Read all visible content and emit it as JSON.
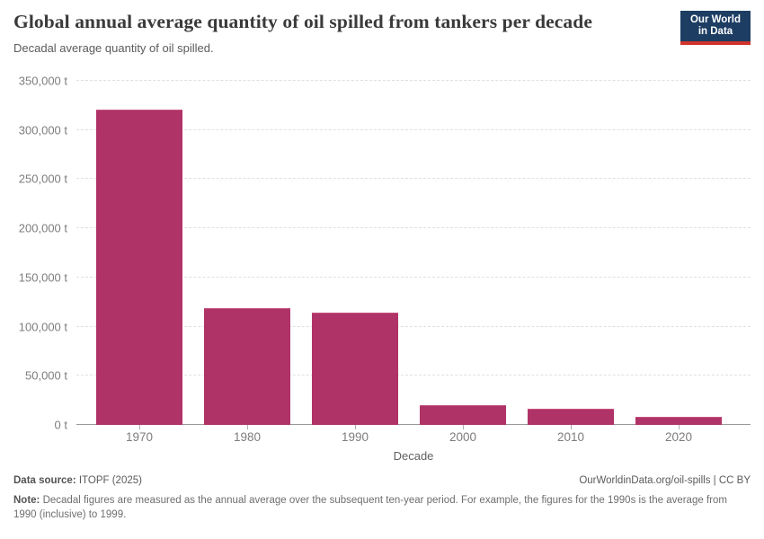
{
  "header": {
    "title": "Global annual average quantity of oil spilled from tankers per decade",
    "subtitle": "Decadal average quantity of oil spilled.",
    "logo": {
      "line1": "Our World",
      "line2": "in Data"
    }
  },
  "chart_data": {
    "type": "bar",
    "categories": [
      "1970",
      "1980",
      "1990",
      "2000",
      "2010",
      "2020"
    ],
    "values": [
      320000,
      118000,
      113000,
      19500,
      16000,
      7000
    ],
    "title": "Global annual average quantity of oil spilled from tankers per decade",
    "xlabel": "Decade",
    "ylabel": "",
    "ylim": [
      0,
      350000
    ],
    "grid": true,
    "legend": false,
    "bar_color": "#b03368",
    "yticks": [
      {
        "value": 0,
        "label": "0 t"
      },
      {
        "value": 50000,
        "label": "50,000 t"
      },
      {
        "value": 100000,
        "label": "100,000 t"
      },
      {
        "value": 150000,
        "label": "150,000 t"
      },
      {
        "value": 200000,
        "label": "200,000 t"
      },
      {
        "value": 250000,
        "label": "250,000 t"
      },
      {
        "value": 300000,
        "label": "300,000 t"
      },
      {
        "value": 350000,
        "label": "350,000 t"
      }
    ]
  },
  "footer": {
    "datasource_label": "Data source:",
    "datasource_value": " ITOPF (2025)",
    "rights": "OurWorldinData.org/oil-spills | CC BY",
    "note_label": "Note:",
    "note_text": " Decadal figures are measured as the annual average over the subsequent ten-year period. For example, the figures for the 1990s is the average from 1990 (inclusive) to 1999."
  },
  "colors": {
    "bar": "#b03368",
    "logo_background": "#1d3d63",
    "logo_accent": "#d0342c",
    "gridline": "#e0e0e0",
    "axis_line": "#9a9a9a"
  }
}
